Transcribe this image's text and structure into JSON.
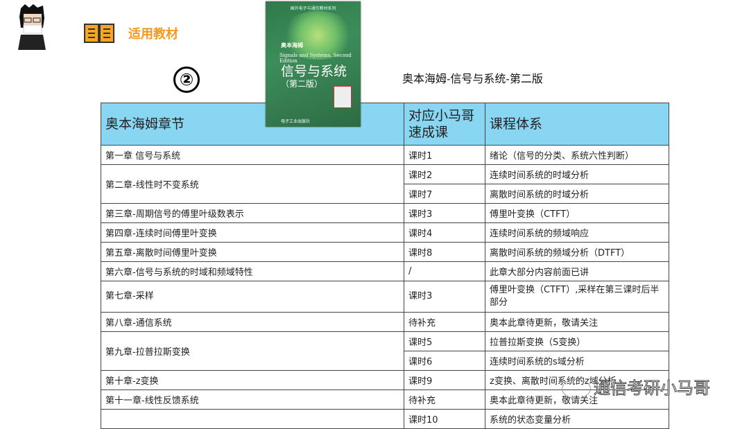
{
  "header": {
    "logo_text": "适用教材",
    "number": "②",
    "subtitle": "奥本海姆-信号与系统-第二版"
  },
  "book": {
    "series": "国外电子与通信教材系列",
    "tag": "奥本海姆",
    "title_en": "Signals and Systems, Second Edition",
    "title_cn": "信号与系统",
    "edition": "（第二版）",
    "publisher": "电子工业出版社"
  },
  "watermark": "通信考研小马哥",
  "table": {
    "headers": [
      "奥本海姆章节",
      "对应小马哥速成课",
      "课程体系"
    ],
    "rows": [
      {
        "chapter": "第一章 信号与系统",
        "lesson": "课时1",
        "topic": "绪论（信号的分类、系统六性判断）"
      },
      {
        "chapter": "第二章-线性时不变系统",
        "lesson": "课时2",
        "topic": "连续时间系统的时域分析"
      },
      {
        "chapter": "",
        "lesson": "课时7",
        "topic": "离散时间系统的时域分析"
      },
      {
        "chapter": "第三章-周期信号的傅里叶级数表示",
        "lesson": "课时3",
        "topic": "傅里叶变换（CTFT）"
      },
      {
        "chapter": "第四章-连续时间傅里叶变换",
        "lesson": "课时4",
        "topic": "连续时间系统的频域响应"
      },
      {
        "chapter": "第五章-离散时间傅里叶变换",
        "lesson": "课时8",
        "topic": "离散时间系统的频域分析（DTFT）"
      },
      {
        "chapter": "第六章-信号与系统的时域和频域特性",
        "lesson": "/",
        "topic": "此章大部分内容前面已讲"
      },
      {
        "chapter": "第七章-采样",
        "lesson": "课时3",
        "topic": "傅里叶变换（CTFT）,采样在第三课时后半部分"
      },
      {
        "chapter": "第八章-通信系统",
        "lesson": "待补充",
        "topic": "奥本此章待更新，敬请关注"
      },
      {
        "chapter": "第九章-拉普拉斯变换",
        "lesson": "课时5",
        "topic": "拉普拉斯变换（S变换）"
      },
      {
        "chapter": "",
        "lesson": "课时6",
        "topic": "连续时间系统的s域分析"
      },
      {
        "chapter": "第十章-z变换",
        "lesson": "课时9",
        "topic": "z变换、离散时间系统的z域分析"
      },
      {
        "chapter": "第十一章-线性反馈系统",
        "lesson": "待补充",
        "topic": "奥本此章待更新，敬请关注"
      },
      {
        "chapter": "",
        "lesson": "课时10",
        "topic": "系统的状态变量分析"
      }
    ]
  },
  "colors": {
    "header_bg": "#89d6f2",
    "logo": "#f39a1e"
  }
}
